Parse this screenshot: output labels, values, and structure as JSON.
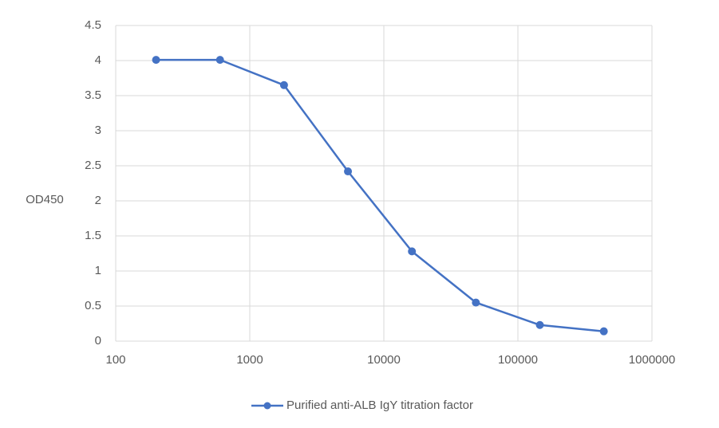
{
  "chart_data": {
    "type": "line",
    "title": "",
    "xlabel": "",
    "ylabel": "OD450",
    "x_scale": "log",
    "xlim": [
      100,
      1000000
    ],
    "ylim": [
      0,
      4.5
    ],
    "x_ticks": [
      "100",
      "1000",
      "10000",
      "100000",
      "1000000"
    ],
    "y_ticks": [
      "0",
      "0.5",
      "1",
      "1.5",
      "2",
      "2.5",
      "3",
      "3.5",
      "4",
      "4.5"
    ],
    "grid": true,
    "legend_position": "bottom",
    "series": [
      {
        "name": "Purified anti-ALB IgY titration factor",
        "color": "#4472c4",
        "marker": "circle",
        "x": [
          200,
          600,
          1800,
          5400,
          16200,
          48600,
          145800,
          437400
        ],
        "y": [
          4.01,
          4.01,
          3.65,
          2.42,
          1.28,
          0.55,
          0.23,
          0.14
        ]
      }
    ]
  }
}
